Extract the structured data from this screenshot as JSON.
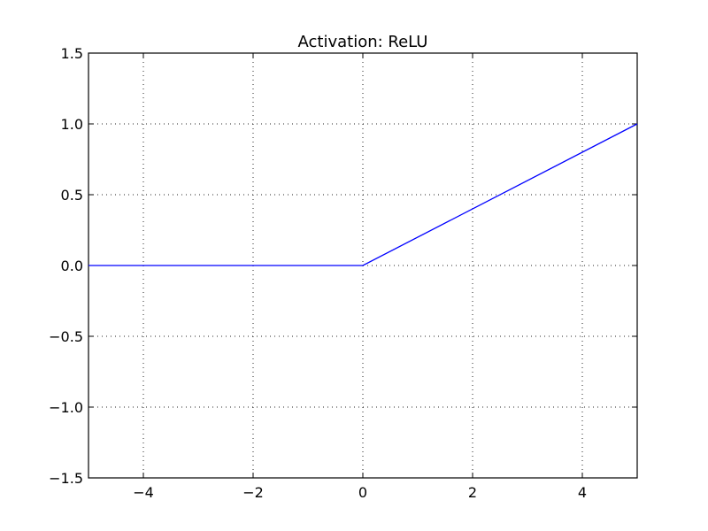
{
  "chart_data": {
    "type": "line",
    "title": "Activation: ReLU",
    "xlabel": "",
    "ylabel": "",
    "xlim": [
      -5,
      5
    ],
    "ylim": [
      -1.5,
      1.5
    ],
    "grid": true,
    "x_ticks": [
      -4,
      -2,
      0,
      2,
      4
    ],
    "x_tick_labels": [
      "−4",
      "−2",
      "0",
      "2",
      "4"
    ],
    "y_ticks": [
      -1.5,
      -1.0,
      -0.5,
      0.0,
      0.5,
      1.0,
      1.5
    ],
    "y_tick_labels": [
      "−1.5",
      "−1.0",
      "−0.5",
      "0.0",
      "0.5",
      "1.0",
      "1.5"
    ],
    "series": [
      {
        "color": "#0000ff",
        "x": [
          -5,
          0,
          5
        ],
        "y": [
          0,
          0,
          1
        ]
      }
    ]
  }
}
